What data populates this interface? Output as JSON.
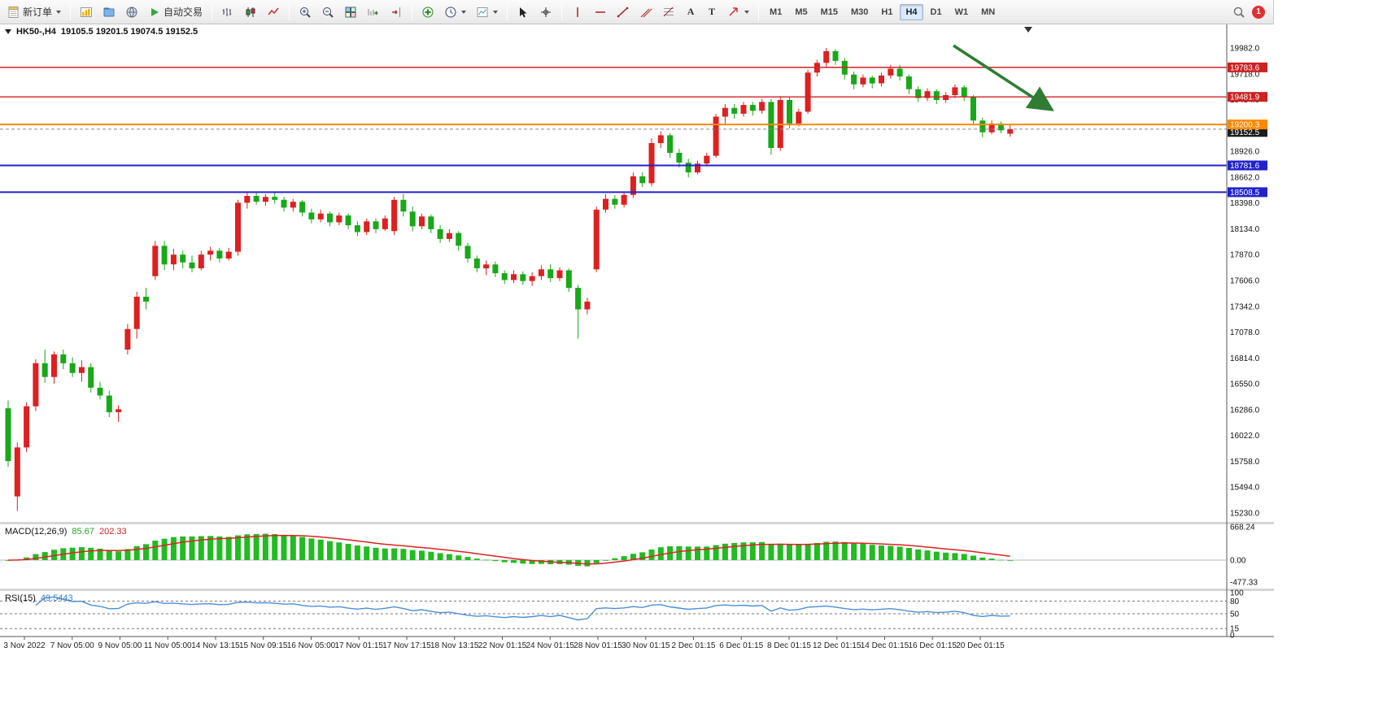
{
  "toolbar": {
    "new_order": "新订单",
    "auto_trading": "自动交易",
    "glyphs": {
      "text_tool": "A",
      "label_tool": "T"
    },
    "timeframes": [
      {
        "label": "M1",
        "active": false
      },
      {
        "label": "M5",
        "active": false
      },
      {
        "label": "M15",
        "active": false
      },
      {
        "label": "M30",
        "active": false
      },
      {
        "label": "H1",
        "active": false
      },
      {
        "label": "H4",
        "active": true
      },
      {
        "label": "D1",
        "active": false
      },
      {
        "label": "W1",
        "active": false
      },
      {
        "label": "MN",
        "active": false
      }
    ],
    "notification_count": "1"
  },
  "chart": {
    "symbol_period": "HK50-,H4",
    "ohlc_text": "19105.5 19201.5 19074.5 19152.5"
  },
  "indicators": {
    "macd": {
      "name": "MACD(12,26,9)",
      "main": "85.67",
      "signal": "202.33"
    },
    "rsi": {
      "name": "RSI(15)",
      "value": "49.5443"
    }
  },
  "chart_data": {
    "type": "candlestick",
    "symbol": "HK50-",
    "timeframe": "H4",
    "last_ohlc": {
      "open": 19105.5,
      "high": 19201.5,
      "low": 19074.5,
      "close": 19152.5
    },
    "colors": {
      "bull": "#dd2020",
      "bear": "#18a818",
      "macd_hist": "#22bb22",
      "macd_signal": "#dd2222",
      "rsi": "#4a90d9",
      "annotation": "#2e7d32"
    },
    "price_axis": {
      "max": 19982.0,
      "min": 15230.0,
      "labels": [
        "19982.0",
        "19718.0",
        "19454.0",
        "19190.0",
        "18926.0",
        "18662.0",
        "18398.0",
        "18134.0",
        "17870.0",
        "17606.0",
        "17342.0",
        "17078.0",
        "16814.0",
        "16550.0",
        "16286.0",
        "16022.0",
        "15758.0",
        "15494.0",
        "15230.0"
      ]
    },
    "hlines": [
      {
        "price": 19783.6,
        "label": "19783.6",
        "color": "#cc2222",
        "width": 1.4,
        "name": "resistance-line-upper"
      },
      {
        "price": 19481.9,
        "label": "19481.9",
        "color": "#cc2222",
        "width": 1.4,
        "name": "resistance-line-lower"
      },
      {
        "price": 19200.3,
        "label": "19200.3",
        "color": "#ff8800",
        "width": 2,
        "name": "pivot-line"
      },
      {
        "price": 18781.6,
        "label": "18781.6",
        "color": "#2222cc",
        "width": 2,
        "name": "support-line-upper"
      },
      {
        "price": 18508.5,
        "label": "18508.5",
        "color": "#2222cc",
        "width": 2,
        "name": "support-line-lower"
      }
    ],
    "current_price": {
      "value": 19152.5,
      "label": "19152.5"
    },
    "macd": {
      "params": "12,26,9",
      "main": 85.67,
      "signal": 202.33,
      "axis_labels": [
        "668.24",
        "0.00",
        "-477.33"
      ],
      "axis_values": [
        668.24,
        0.0,
        -477.33
      ]
    },
    "rsi": {
      "period": 15,
      "value": 49.5443,
      "levels": [
        80,
        50,
        15
      ],
      "axis_labels": [
        "100",
        "80",
        "50",
        "15",
        "0"
      ],
      "axis_values": [
        100,
        80,
        50,
        15,
        0
      ]
    },
    "time_axis": [
      "3 Nov 2022",
      "7 Nov 05:00",
      "9 Nov 05:00",
      "11 Nov 05:00",
      "14 Nov 13:15",
      "15 Nov 09:15",
      "16 Nov 05:00",
      "17 Nov 01:15",
      "17 Nov 17:15",
      "18 Nov 13:15",
      "22 Nov 01:15",
      "24 Nov 01:15",
      "28 Nov 01:15",
      "30 Nov 01:15",
      "2 Dec 01:15",
      "6 Dec 01:15",
      "8 Dec 01:15",
      "12 Dec 01:15",
      "14 Dec 01:15",
      "16 Dec 01:15",
      "20 Dec 01:15"
    ],
    "annotation": {
      "type": "arrow",
      "direction": "down-right",
      "color": "#2e7d32"
    },
    "candles": [
      [
        16300,
        16380,
        15700,
        15760
      ],
      [
        15400,
        15950,
        15250,
        15900
      ],
      [
        15900,
        16360,
        15850,
        16320
      ],
      [
        16320,
        16800,
        16270,
        16760
      ],
      [
        16760,
        16900,
        16560,
        16620
      ],
      [
        16620,
        16880,
        16550,
        16850
      ],
      [
        16850,
        16900,
        16700,
        16760
      ],
      [
        16760,
        16820,
        16620,
        16660
      ],
      [
        16660,
        16790,
        16570,
        16720
      ],
      [
        16720,
        16760,
        16460,
        16510
      ],
      [
        16510,
        16570,
        16390,
        16430
      ],
      [
        16430,
        16480,
        16210,
        16260
      ],
      [
        16260,
        16330,
        16160,
        16290
      ],
      [
        16900,
        17160,
        16850,
        17110
      ],
      [
        17110,
        17490,
        17010,
        17440
      ],
      [
        17440,
        17530,
        17310,
        17390
      ],
      [
        17650,
        18010,
        17610,
        17960
      ],
      [
        17960,
        18010,
        17710,
        17770
      ],
      [
        17770,
        17930,
        17710,
        17870
      ],
      [
        17870,
        17910,
        17730,
        17790
      ],
      [
        17790,
        17860,
        17690,
        17730
      ],
      [
        17730,
        17910,
        17710,
        17870
      ],
      [
        17870,
        17950,
        17810,
        17910
      ],
      [
        17910,
        17940,
        17790,
        17830
      ],
      [
        17830,
        17940,
        17810,
        17900
      ],
      [
        17900,
        18430,
        17860,
        18400
      ],
      [
        18400,
        18510,
        18340,
        18470
      ],
      [
        18470,
        18500,
        18380,
        18410
      ],
      [
        18410,
        18490,
        18370,
        18460
      ],
      [
        18460,
        18510,
        18390,
        18430
      ],
      [
        18430,
        18460,
        18310,
        18350
      ],
      [
        18350,
        18440,
        18310,
        18410
      ],
      [
        18410,
        18430,
        18260,
        18300
      ],
      [
        18300,
        18340,
        18190,
        18230
      ],
      [
        18230,
        18330,
        18200,
        18290
      ],
      [
        18290,
        18310,
        18160,
        18200
      ],
      [
        18200,
        18300,
        18170,
        18270
      ],
      [
        18270,
        18290,
        18130,
        18170
      ],
      [
        18170,
        18210,
        18060,
        18100
      ],
      [
        18100,
        18240,
        18070,
        18210
      ],
      [
        18210,
        18240,
        18090,
        18130
      ],
      [
        18130,
        18270,
        18110,
        18240
      ],
      [
        18110,
        18460,
        18070,
        18430
      ],
      [
        18430,
        18490,
        18260,
        18310
      ],
      [
        18310,
        18360,
        18110,
        18160
      ],
      [
        18160,
        18290,
        18130,
        18260
      ],
      [
        18260,
        18280,
        18090,
        18130
      ],
      [
        18130,
        18170,
        17990,
        18030
      ],
      [
        18030,
        18130,
        18000,
        18090
      ],
      [
        18090,
        18110,
        17910,
        17960
      ],
      [
        17960,
        17990,
        17790,
        17830
      ],
      [
        17830,
        17860,
        17690,
        17730
      ],
      [
        17730,
        17810,
        17660,
        17770
      ],
      [
        17770,
        17800,
        17640,
        17680
      ],
      [
        17680,
        17710,
        17570,
        17610
      ],
      [
        17610,
        17710,
        17580,
        17670
      ],
      [
        17670,
        17700,
        17560,
        17600
      ],
      [
        17600,
        17690,
        17550,
        17650
      ],
      [
        17650,
        17760,
        17610,
        17720
      ],
      [
        17720,
        17770,
        17590,
        17630
      ],
      [
        17630,
        17740,
        17600,
        17710
      ],
      [
        17710,
        17730,
        17490,
        17530
      ],
      [
        17530,
        17560,
        17010,
        17310
      ],
      [
        17310,
        17430,
        17260,
        17390
      ],
      [
        17720,
        18360,
        17690,
        18330
      ],
      [
        18330,
        18490,
        18300,
        18440
      ],
      [
        18440,
        18480,
        18340,
        18380
      ],
      [
        18380,
        18510,
        18350,
        18480
      ],
      [
        18480,
        18710,
        18450,
        18670
      ],
      [
        18670,
        18710,
        18560,
        18600
      ],
      [
        18600,
        19060,
        18570,
        19010
      ],
      [
        19010,
        19130,
        18960,
        19090
      ],
      [
        19090,
        19110,
        18860,
        18910
      ],
      [
        18910,
        18950,
        18760,
        18810
      ],
      [
        18810,
        18850,
        18660,
        18710
      ],
      [
        18710,
        18830,
        18690,
        18800
      ],
      [
        18800,
        18910,
        18770,
        18880
      ],
      [
        18880,
        19310,
        18860,
        19280
      ],
      [
        19280,
        19410,
        19210,
        19370
      ],
      [
        19370,
        19410,
        19260,
        19310
      ],
      [
        19310,
        19430,
        19280,
        19400
      ],
      [
        19400,
        19430,
        19290,
        19340
      ],
      [
        19340,
        19460,
        19310,
        19430
      ],
      [
        19430,
        19460,
        18890,
        18960
      ],
      [
        18960,
        19490,
        18930,
        19450
      ],
      [
        19450,
        19480,
        19160,
        19210
      ],
      [
        19210,
        19360,
        19180,
        19330
      ],
      [
        19330,
        19760,
        19310,
        19730
      ],
      [
        19730,
        19860,
        19690,
        19830
      ],
      [
        19830,
        19982,
        19790,
        19950
      ],
      [
        19950,
        19970,
        19810,
        19850
      ],
      [
        19850,
        19880,
        19660,
        19710
      ],
      [
        19710,
        19740,
        19560,
        19610
      ],
      [
        19610,
        19710,
        19580,
        19680
      ],
      [
        19680,
        19700,
        19570,
        19620
      ],
      [
        19620,
        19730,
        19590,
        19700
      ],
      [
        19700,
        19810,
        19670,
        19770
      ],
      [
        19770,
        19810,
        19650,
        19690
      ],
      [
        19690,
        19710,
        19510,
        19560
      ],
      [
        19560,
        19590,
        19430,
        19470
      ],
      [
        19470,
        19570,
        19440,
        19540
      ],
      [
        19540,
        19560,
        19410,
        19450
      ],
      [
        19450,
        19530,
        19420,
        19500
      ],
      [
        19500,
        19610,
        19470,
        19580
      ],
      [
        19580,
        19600,
        19440,
        19480
      ],
      [
        19480,
        19500,
        19190,
        19240
      ],
      [
        19240,
        19270,
        19070,
        19120
      ],
      [
        19120,
        19240,
        19100,
        19210
      ],
      [
        19210,
        19230,
        19110,
        19140
      ],
      [
        19105.5,
        19201.5,
        19074.5,
        19152.5
      ]
    ]
  }
}
